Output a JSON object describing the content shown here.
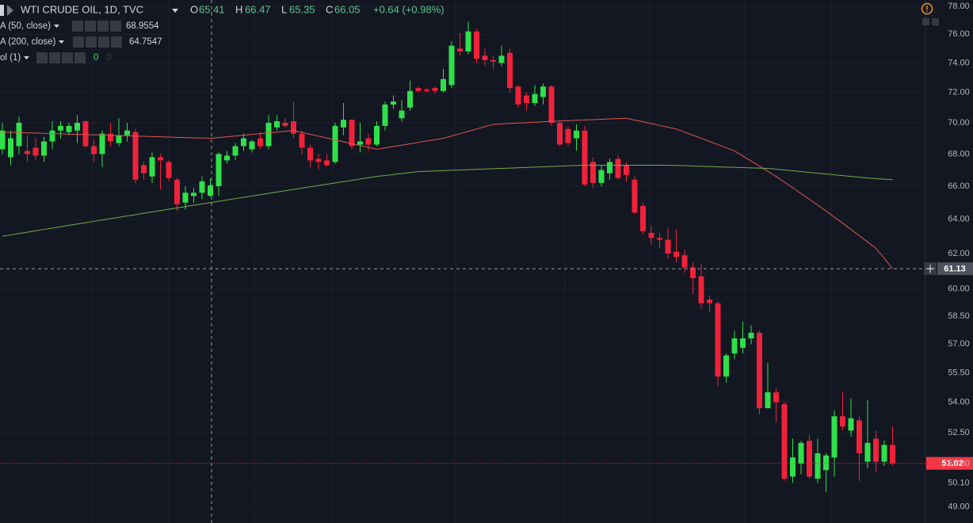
{
  "chart_data": {
    "type": "candlestick",
    "title": "WTI CRUDE OIL, 1D, TVC",
    "header": {
      "o_label": "O",
      "open": 65.41,
      "h_label": "H",
      "high": 66.47,
      "l_label": "L",
      "low": 65.35,
      "c_label": "C",
      "close": 66.05,
      "change": "+0.64 (+0.98%)"
    },
    "log_scale": true,
    "grid": true,
    "ylim": [
      48.27,
      78.46
    ],
    "yticks": [
      {
        "value": 78,
        "label": "78.00"
      },
      {
        "value": 76,
        "label": "76.00"
      },
      {
        "value": 74,
        "label": "74.00"
      },
      {
        "value": 72,
        "label": "72.00"
      },
      {
        "value": 70,
        "label": "70.00"
      },
      {
        "value": 68,
        "label": "68.00"
      },
      {
        "value": 66,
        "label": "66.00"
      },
      {
        "value": 64,
        "label": "64.00"
      },
      {
        "value": 62,
        "label": "62.00"
      },
      {
        "value": 60,
        "label": "60.00"
      },
      {
        "value": 58.5,
        "label": "58.50"
      },
      {
        "value": 57,
        "label": "57.00"
      },
      {
        "value": 55.5,
        "label": "55.50"
      },
      {
        "value": 54,
        "label": "54.00"
      },
      {
        "value": 52.5,
        "label": "52.50"
      },
      {
        "value": 51,
        "label": "51.00"
      },
      {
        "value": 50.1,
        "label": "50.10"
      },
      {
        "value": 49,
        "label": "49.00"
      }
    ],
    "up_color": "#2fe04a",
    "down_color": "#f0223a",
    "candles": {
      "open": [
        68.3,
        67.8,
        68.5,
        68.2,
        68.4,
        67.9,
        68.8,
        69.5,
        69.4,
        69.5,
        70.1,
        68.5,
        68.0,
        69.3,
        68.7,
        69.2,
        69.4,
        67.3,
        66.6,
        67.8,
        67.5,
        66.4,
        65.0,
        65.4,
        65.6,
        65.41,
        66.0,
        67.6,
        67.9,
        68.5,
        68.3,
        69.0,
        68.5,
        69.7,
        70.0,
        70.1,
        69.3,
        68.4,
        67.7,
        67.6,
        67.5,
        69.7,
        70.2,
        68.6,
        69.0,
        68.6,
        69.8,
        71.2,
        70.3,
        71.0,
        72.3,
        72.2,
        72.3,
        72.1,
        72.5,
        75.0,
        74.8,
        76.2,
        74.5,
        74.2,
        74.0,
        74.7,
        72.4,
        71.8,
        71.3,
        71.7,
        72.4,
        70.0,
        69.6,
        69.0,
        69.5,
        67.5,
        66.2,
        66.8,
        67.7,
        67.3,
        66.4,
        64.8,
        63.2,
        62.9,
        62.8,
        62.1,
        61.9,
        61.2,
        60.7,
        59.4,
        59.2,
        55.3,
        56.5,
        56.8,
        57.3,
        57.6,
        53.7,
        54.5,
        53.9,
        50.4,
        51.0,
        52.1,
        50.3,
        50.7,
        51.3,
        53.3,
        52.6,
        53.1,
        51.1,
        52.2,
        51.1,
        51.9
      ],
      "high": [
        70.0,
        69.5,
        70.4,
        69.2,
        69.0,
        69.1,
        70.1,
        70.1,
        70.0,
        70.5,
        70.2,
        68.9,
        69.5,
        70.0,
        70.3,
        70.0,
        69.6,
        67.5,
        68.1,
        68.0,
        67.6,
        66.5,
        66.0,
        65.9,
        66.6,
        66.47,
        68.1,
        68.2,
        68.7,
        69.3,
        68.9,
        69.4,
        70.5,
        70.5,
        70.3,
        71.4,
        69.5,
        68.6,
        68.0,
        68.0,
        70.0,
        71.3,
        70.2,
        70.0,
        69.3,
        70.1,
        71.4,
        71.8,
        71.5,
        72.8,
        72.4,
        72.3,
        72.4,
        73.6,
        75.5,
        76.1,
        76.9,
        76.4,
        75.0,
        74.5,
        75.2,
        75.0,
        72.5,
        72.0,
        72.5,
        72.6,
        72.5,
        70.1,
        69.8,
        69.9,
        69.8,
        67.8,
        67.3,
        67.7,
        67.9,
        67.5,
        66.6,
        65.0,
        63.6,
        63.2,
        63.5,
        63.4,
        62.2,
        61.5,
        61.4,
        59.6,
        59.3,
        56.5,
        57.7,
        58.2,
        58.0,
        57.7,
        56.0,
        54.7,
        54.0,
        52.2,
        52.1,
        52.4,
        52.2,
        51.5,
        53.6,
        54.5,
        54.2,
        53.3,
        54.1,
        52.6,
        52.1,
        52.8
      ],
      "low": [
        68.0,
        67.3,
        68.0,
        67.5,
        67.6,
        67.5,
        68.3,
        69.0,
        69.2,
        68.7,
        68.4,
        67.5,
        67.2,
        68.5,
        68.5,
        68.8,
        66.2,
        66.4,
        66.2,
        65.8,
        66.3,
        64.5,
        64.6,
        65.0,
        65.2,
        65.35,
        65.4,
        67.4,
        67.6,
        68.2,
        68.1,
        68.3,
        68.3,
        69.5,
        69.7,
        69.0,
        68.0,
        67.2,
        67.0,
        67.2,
        67.4,
        69.2,
        68.3,
        68.1,
        68.2,
        68.5,
        69.5,
        70.9,
        70.1,
        70.8,
        72.0,
        72.0,
        71.9,
        72.0,
        72.3,
        74.5,
        74.6,
        74.0,
        73.8,
        73.6,
        73.8,
        72.0,
        71.0,
        70.8,
        71.1,
        71.2,
        69.8,
        68.5,
        68.5,
        68.2,
        66.0,
        65.9,
        66.0,
        66.4,
        66.4,
        66.3,
        64.3,
        63.1,
        62.5,
        62.3,
        61.7,
        61.5,
        60.9,
        59.7,
        58.9,
        58.7,
        54.8,
        55.0,
        56.2,
        56.5,
        57.0,
        53.4,
        53.7,
        53.0,
        50.2,
        50.1,
        50.5,
        50.3,
        50.1,
        49.7,
        50.4,
        52.6,
        52.3,
        50.2,
        50.8,
        50.6,
        50.9,
        50.9
      ],
      "close": [
        69.5,
        69.0,
        70.0,
        68.0,
        67.9,
        68.8,
        69.5,
        69.8,
        69.8,
        70.0,
        68.5,
        68.0,
        69.3,
        68.8,
        69.2,
        69.5,
        66.4,
        66.8,
        67.8,
        67.6,
        66.5,
        64.9,
        65.6,
        65.6,
        66.3,
        66.05,
        68.0,
        67.9,
        68.5,
        69.0,
        68.8,
        68.5,
        70.0,
        70.1,
        69.8,
        69.3,
        68.4,
        67.6,
        67.5,
        67.3,
        69.8,
        70.2,
        68.5,
        68.8,
        68.6,
        69.8,
        71.2,
        71.4,
        70.8,
        72.1,
        72.1,
        72.1,
        72.1,
        72.9,
        75.2,
        74.8,
        76.2,
        74.3,
        74.2,
        74.1,
        74.5,
        72.3,
        71.2,
        71.3,
        71.9,
        72.4,
        70.0,
        68.6,
        68.7,
        69.5,
        66.1,
        66.2,
        67.0,
        67.5,
        66.5,
        66.7,
        64.4,
        63.3,
        62.9,
        62.8,
        62.0,
        61.8,
        61.2,
        60.6,
        59.2,
        59.2,
        55.3,
        56.4,
        57.3,
        57.3,
        57.6,
        53.7,
        54.5,
        54.0,
        50.3,
        51.3,
        52.0,
        50.4,
        51.5,
        51.4,
        53.3,
        52.8,
        53.2,
        51.5,
        52.0,
        51.1,
        51.9,
        51.02
      ]
    },
    "series": [
      {
        "name": "A (50, close)",
        "color": "#e0584e",
        "legend_value": 68.9554,
        "values": [
          69.4,
          69.38,
          69.37,
          69.35,
          69.34,
          69.32,
          69.3,
          69.29,
          69.27,
          69.26,
          69.24,
          69.22,
          69.21,
          69.19,
          69.18,
          69.16,
          69.14,
          69.13,
          69.11,
          69.1,
          69.08,
          69.06,
          69.05,
          69.03,
          69.02,
          69.0,
          69.05,
          69.1,
          69.15,
          69.2,
          69.25,
          69.3,
          69.35,
          69.4,
          69.45,
          69.5,
          69.38,
          69.26,
          69.14,
          69.02,
          68.9,
          68.78,
          68.66,
          68.54,
          68.42,
          68.3,
          68.39,
          68.48,
          68.56,
          68.65,
          68.74,
          68.83,
          68.91,
          69.0,
          69.15,
          69.3,
          69.45,
          69.6,
          69.75,
          69.9,
          69.93,
          69.96,
          69.99,
          70.01,
          70.04,
          70.07,
          70.1,
          70.12,
          70.14,
          70.17,
          70.19,
          70.21,
          70.23,
          70.26,
          70.28,
          70.3,
          70.18,
          70.07,
          69.95,
          69.83,
          69.72,
          69.6,
          69.4,
          69.2,
          69.0,
          68.8,
          68.6,
          68.4,
          68.2,
          67.88,
          67.56,
          67.24,
          66.92,
          66.6,
          66.25,
          65.9,
          65.55,
          65.2,
          64.85,
          64.5,
          64.13,
          63.77,
          63.4,
          63.03,
          62.67,
          62.3,
          61.72,
          61.13
        ]
      },
      {
        "name": "A (200, close)",
        "color": "#6fae4c",
        "legend_value": 64.7547,
        "values": [
          63.0,
          63.08,
          63.16,
          63.24,
          63.32,
          63.4,
          63.48,
          63.56,
          63.64,
          63.72,
          63.8,
          63.88,
          63.96,
          64.04,
          64.12,
          64.2,
          64.28,
          64.36,
          64.44,
          64.52,
          64.6,
          64.68,
          64.76,
          64.84,
          64.92,
          65.0,
          65.08,
          65.16,
          65.24,
          65.32,
          65.4,
          65.48,
          65.56,
          65.64,
          65.72,
          65.8,
          65.88,
          65.96,
          66.04,
          66.12,
          66.2,
          66.28,
          66.36,
          66.44,
          66.52,
          66.6,
          66.66,
          66.72,
          66.78,
          66.84,
          66.9,
          66.92,
          66.94,
          66.96,
          66.98,
          67.0,
          67.02,
          67.04,
          67.06,
          67.08,
          67.1,
          67.12,
          67.14,
          67.16,
          67.18,
          67.2,
          67.22,
          67.24,
          67.26,
          67.28,
          67.3,
          67.3,
          67.3,
          67.3,
          67.3,
          67.3,
          67.3,
          67.3,
          67.3,
          67.3,
          67.3,
          67.28,
          67.27,
          67.25,
          67.23,
          67.22,
          67.2,
          67.18,
          67.17,
          67.15,
          67.13,
          67.12,
          67.1,
          67.05,
          67.0,
          66.95,
          66.9,
          66.85,
          66.8,
          66.75,
          66.7,
          66.65,
          66.6,
          66.55,
          66.5,
          66.47,
          66.43,
          66.4
        ]
      }
    ],
    "volume": {
      "name": "ol (1)",
      "values": [
        0,
        0
      ]
    },
    "crosshair_price": 61.13,
    "last_price": 51.02
  }
}
